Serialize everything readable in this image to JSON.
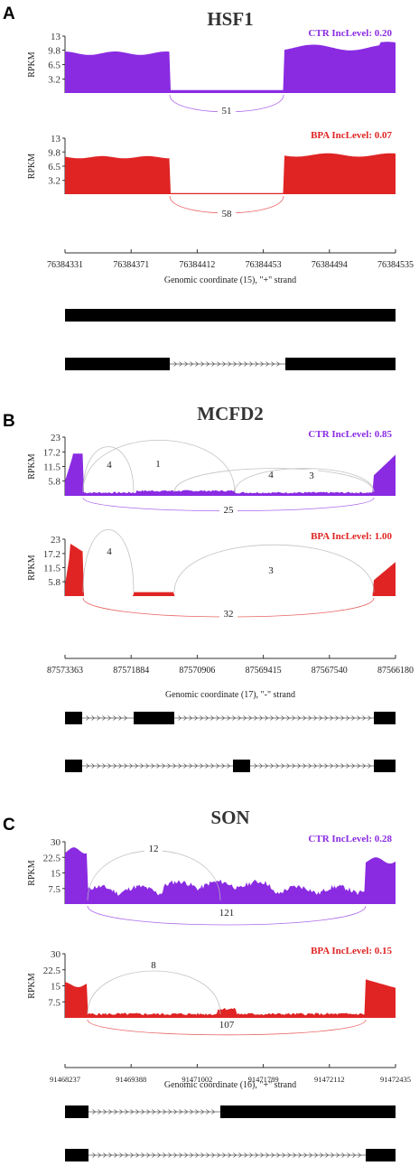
{
  "chart_data": [
    {
      "panel": "A",
      "type": "area",
      "title": "HSF1",
      "ylabel": "RPKM",
      "xlabel": "Genomic coordinate (15), \"+\" strand",
      "x_ticks": [
        "76384331",
        "76384371",
        "76384412",
        "76384453",
        "76384494",
        "76384535"
      ],
      "series": [
        {
          "name": "CTR IncLevel: 0.20",
          "color": "#8a2be2",
          "y_ticks": [
            "13",
            "9.8",
            "6.5",
            "3.2"
          ],
          "ylim": [
            0,
            13
          ],
          "junctions": [
            {
              "label": "51"
            }
          ]
        },
        {
          "name": "BPA IncLevel: 0.07",
          "color": "#e02424",
          "y_ticks": [
            "13",
            "9.8",
            "6.5",
            "3.2"
          ],
          "ylim": [
            0,
            13
          ],
          "junctions": [
            {
              "label": "58"
            }
          ]
        }
      ]
    },
    {
      "panel": "B",
      "type": "area",
      "title": "MCFD2",
      "ylabel": "RPKM",
      "xlabel": "Genomic coordinate (17), \"-\" strand",
      "x_ticks": [
        "87573363",
        "87571884",
        "87570906",
        "87569415",
        "87567540",
        "87566180"
      ],
      "series": [
        {
          "name": "CTR IncLevel: 0.85",
          "color": "#8a2be2",
          "y_ticks": [
            "23",
            "17.2",
            "11.5",
            "5.8"
          ],
          "ylim": [
            0,
            23
          ],
          "junctions": [
            {
              "label": "4"
            },
            {
              "label": "1"
            },
            {
              "label": "4"
            },
            {
              "label": "3"
            },
            {
              "label": "25"
            }
          ]
        },
        {
          "name": "BPA IncLevel: 1.00",
          "color": "#e02424",
          "y_ticks": [
            "23",
            "17.2",
            "11.5",
            "5.8"
          ],
          "ylim": [
            0,
            23
          ],
          "junctions": [
            {
              "label": "4"
            },
            {
              "label": "3"
            },
            {
              "label": "32"
            }
          ]
        }
      ]
    },
    {
      "panel": "C",
      "type": "area",
      "title": "SON",
      "ylabel": "RPKM",
      "xlabel": "Genomic coordinate (16), \"+\" strand",
      "x_ticks": [
        "91468237",
        "91469388",
        "91471002",
        "91471789",
        "91472112",
        "91472435"
      ],
      "series": [
        {
          "name": "CTR IncLevel: 0.28",
          "color": "#8a2be2",
          "y_ticks": [
            "30",
            "22.5",
            "15",
            "7.5"
          ],
          "ylim": [
            0,
            30
          ],
          "junctions": [
            {
              "label": "12"
            },
            {
              "label": "121"
            }
          ]
        },
        {
          "name": "BPA IncLevel: 0.15",
          "color": "#e02424",
          "y_ticks": [
            "30",
            "22.5",
            "15",
            "7.5"
          ],
          "ylim": [
            0,
            30
          ],
          "junctions": [
            {
              "label": "8"
            },
            {
              "label": "107"
            }
          ]
        }
      ]
    }
  ]
}
